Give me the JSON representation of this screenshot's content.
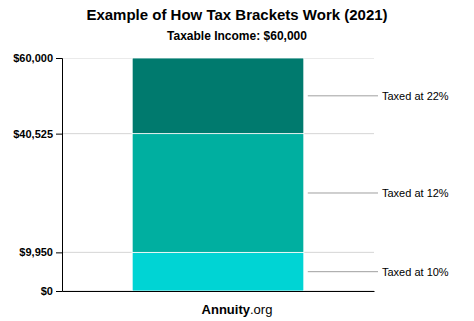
{
  "chart_data": {
    "type": "bar",
    "stacked": true,
    "title": "Example of How Tax Brackets Work (2021)",
    "subtitle": "Taxable Income: $60,000",
    "annotations": [
      "Annuity",
      ".org"
    ],
    "categories": [
      null
    ],
    "series": [
      {
        "name": "Taxed at 10%",
        "color": "#00D4D4",
        "values": [
          9950
        ]
      },
      {
        "name": "Taxed at 12%",
        "color": "#00AFA0",
        "values": [
          30575
        ]
      },
      {
        "name": "Taxed at 22%",
        "color": "#007A6E",
        "values": [
          19475
        ]
      }
    ],
    "ylim": [
      0,
      60000
    ],
    "yticks": [
      {
        "value": 0,
        "label": "$0"
      },
      {
        "value": 9950,
        "label": "$9,950"
      },
      {
        "value": 40525,
        "label": "$40,525"
      },
      {
        "value": 60000,
        "label": "$60,000"
      }
    ],
    "grid": true
  }
}
